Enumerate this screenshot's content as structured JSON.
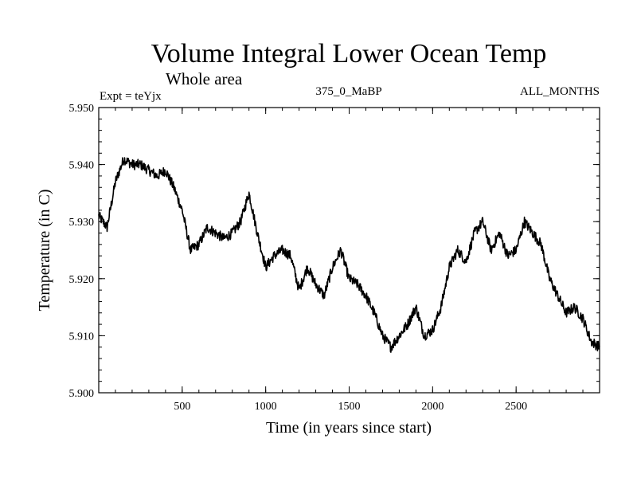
{
  "chart_data": {
    "type": "line",
    "title": "Volume Integral Lower Ocean Temp",
    "subtitle": "Whole area",
    "left_label": "Expt = teYjx",
    "center_label": "375_0_MaBP",
    "right_label": "ALL_MONTHS",
    "xlabel": "Time (in years since start)",
    "ylabel": "Temperature (in C)",
    "xlim": [
      0,
      3000
    ],
    "ylim": [
      5.9,
      5.95
    ],
    "xticks": [
      500,
      1000,
      1500,
      2000,
      2500
    ],
    "xtick_labels": [
      "500",
      "1000",
      "1500",
      "2000",
      "2500"
    ],
    "yticks": [
      5.9,
      5.91,
      5.92,
      5.93,
      5.94,
      5.95
    ],
    "ytick_labels": [
      "5.900",
      "5.910",
      "5.920",
      "5.930",
      "5.940",
      "5.950"
    ],
    "series": [
      {
        "name": "Volume integral lower ocean temperature",
        "color": "#000000",
        "x": [
          0,
          50,
          100,
          150,
          200,
          250,
          300,
          350,
          400,
          450,
          500,
          550,
          600,
          650,
          700,
          750,
          800,
          850,
          900,
          950,
          1000,
          1050,
          1100,
          1150,
          1200,
          1250,
          1300,
          1350,
          1400,
          1450,
          1500,
          1550,
          1600,
          1650,
          1700,
          1750,
          1800,
          1850,
          1900,
          1950,
          2000,
          2050,
          2100,
          2150,
          2200,
          2250,
          2300,
          2350,
          2400,
          2450,
          2500,
          2550,
          2600,
          2650,
          2700,
          2750,
          2800,
          2850,
          2900,
          2950,
          3000
        ],
        "y": [
          5.931,
          5.929,
          5.937,
          5.941,
          5.94,
          5.94,
          5.939,
          5.938,
          5.939,
          5.936,
          5.932,
          5.925,
          5.926,
          5.929,
          5.928,
          5.927,
          5.928,
          5.93,
          5.935,
          5.928,
          5.922,
          5.924,
          5.925,
          5.924,
          5.918,
          5.922,
          5.919,
          5.917,
          5.922,
          5.925,
          5.92,
          5.919,
          5.917,
          5.914,
          5.91,
          5.908,
          5.91,
          5.912,
          5.915,
          5.91,
          5.911,
          5.915,
          5.922,
          5.925,
          5.923,
          5.928,
          5.93,
          5.925,
          5.928,
          5.924,
          5.925,
          5.93,
          5.928,
          5.926,
          5.92,
          5.917,
          5.914,
          5.915,
          5.913,
          5.909,
          5.908
        ]
      }
    ]
  }
}
